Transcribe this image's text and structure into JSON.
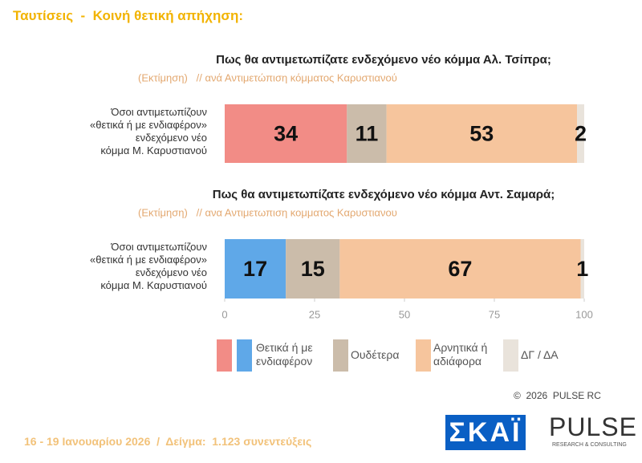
{
  "header": {
    "title": "Ταυτίσεις  -  Κοινή θετική απήχηση:"
  },
  "chart_data": [
    {
      "type": "bar",
      "orientation": "horizontal",
      "stacked": true,
      "title": "Πως θα αντιμετωπίζατε ενδεχόμενο νέο κόμμα Αλ. Τσίπρα;",
      "subtitle": "(Εκτίμηση)   // ανά Αντιμετώπιση κόμματος Καρυστιανού",
      "categories": [
        "Όσοι αντιμετωπίζουν\n«θετικά ή με ενδιαφέρον»\nενδεχόμενο νέο\nκόμμα Μ. Καρυστιανού"
      ],
      "series": [
        {
          "name": "Θετικά ή με\nενδιαφέρον",
          "color": "#f28c86",
          "values": [
            34
          ]
        },
        {
          "name": "Ουδέτερα",
          "color": "#cbbcaa",
          "values": [
            11
          ]
        },
        {
          "name": "Αρνητικά ή\nαδιάφορα",
          "color": "#f6c59d",
          "values": [
            53
          ]
        },
        {
          "name": "ΔΓ / ΔΑ",
          "color": "#e9e3db",
          "values": [
            2
          ]
        }
      ],
      "xlim": [
        0,
        100
      ]
    },
    {
      "type": "bar",
      "orientation": "horizontal",
      "stacked": true,
      "title": "Πως θα αντιμετωπίζατε ενδεχόμενο νέο κόμμα Αντ. Σαμαρά;",
      "subtitle": "(Εκτίμηση)   // ανα Αντιμετωπιση κομματος Καρυστιανου",
      "categories": [
        "Όσοι αντιμετωπίζουν\n«θετικά ή με ενδιαφέρον»\nενδεχόμενο νέο\nκόμμα Μ. Καρυστιανού"
      ],
      "series": [
        {
          "color": "#5fa8e8",
          "values": [
            17
          ]
        },
        {
          "color": "#cbbcaa",
          "values": [
            15
          ]
        },
        {
          "color": "#f6c59d",
          "values": [
            67
          ]
        },
        {
          "color": "#e9e3db",
          "values": [
            1
          ]
        }
      ],
      "xlim": [
        0,
        100
      ],
      "xticks": [
        0,
        25,
        50,
        75,
        100
      ]
    }
  ],
  "footer": {
    "copyright": "©  2026  PULSE RC",
    "note": "16 - 19 Ιανουαρίου 2026  /  Δείγμα:  1.123 συνεντεύξεις",
    "logo_skai": "ΣΚΑΪ",
    "logo_pulse": "PULSE",
    "logo_pulse_sub": "RESEARCH & CONSULTING"
  }
}
